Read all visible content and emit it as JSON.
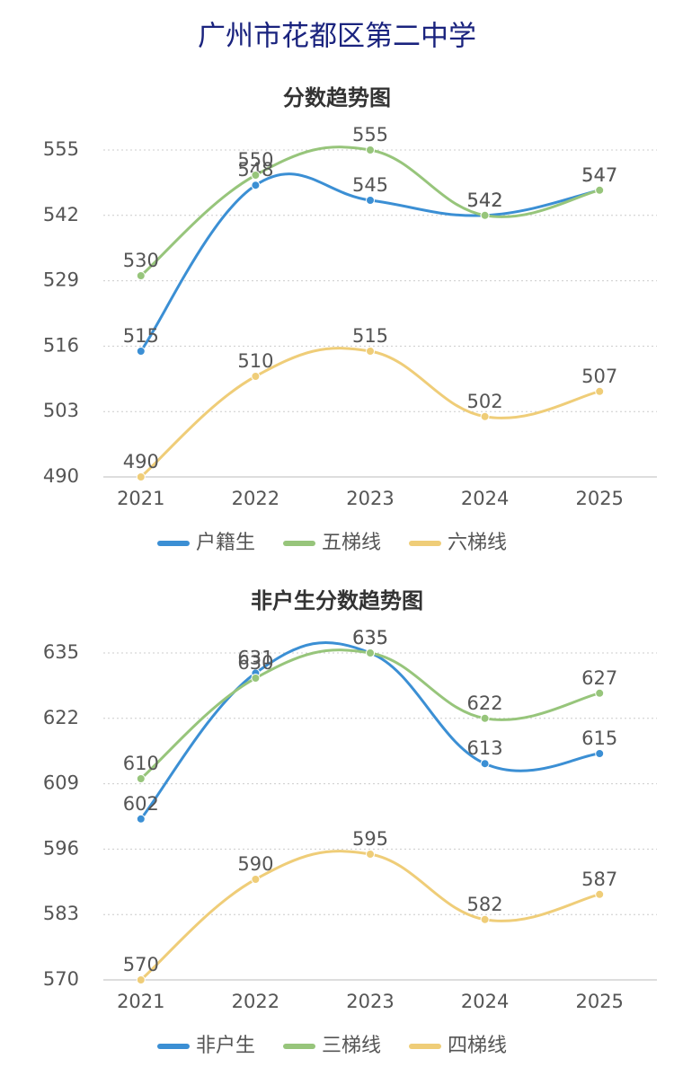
{
  "title": "广州市花都区第二中学",
  "chart_data": [
    {
      "type": "line",
      "title": "分数趋势图",
      "categories": [
        "2021",
        "2022",
        "2023",
        "2024",
        "2025"
      ],
      "series": [
        {
          "name": "户籍生",
          "color": "#3b8fd4",
          "values": [
            515,
            548,
            545,
            542,
            547
          ]
        },
        {
          "name": "五梯线",
          "color": "#97c57b",
          "values": [
            530,
            550,
            555,
            542,
            547
          ]
        },
        {
          "name": "六梯线",
          "color": "#efcd78",
          "values": [
            490,
            510,
            515,
            502,
            507
          ]
        }
      ],
      "ylim": [
        490,
        555
      ],
      "yticks": [
        490,
        503,
        516,
        529,
        542,
        555
      ],
      "grid": true,
      "legend": "bottom"
    },
    {
      "type": "line",
      "title": "非户生分数趋势图",
      "categories": [
        "2021",
        "2022",
        "2023",
        "2024",
        "2025"
      ],
      "series": [
        {
          "name": "非户生",
          "color": "#3b8fd4",
          "values": [
            602,
            631,
            635,
            613,
            615
          ]
        },
        {
          "name": "三梯线",
          "color": "#97c57b",
          "values": [
            610,
            630,
            635,
            622,
            627
          ]
        },
        {
          "name": "四梯线",
          "color": "#efcd78",
          "values": [
            570,
            590,
            595,
            582,
            587
          ]
        }
      ],
      "ylim": [
        570,
        635
      ],
      "yticks": [
        570,
        583,
        596,
        609,
        622,
        635
      ],
      "grid": true,
      "legend": "bottom"
    }
  ]
}
